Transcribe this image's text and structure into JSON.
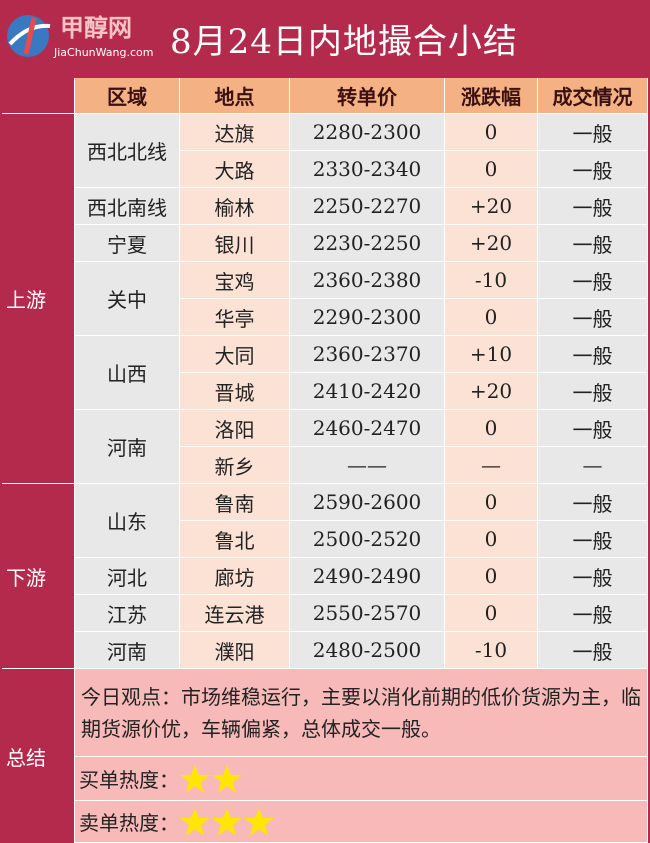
{
  "header": {
    "logo_cn": "甲醇网",
    "logo_en": "JiaChunWang.com",
    "title": "8月24日内地撮合小结"
  },
  "table": {
    "columns": [
      "区域",
      "地点",
      "转单价",
      "涨跌幅",
      "成交情况"
    ],
    "sections": [
      {
        "name": "上游",
        "groups": [
          {
            "region": "西北北线",
            "rows": [
              [
                "达旗",
                "2280-2300",
                "0",
                "一般"
              ],
              [
                "大路",
                "2330-2340",
                "0",
                "一般"
              ]
            ]
          },
          {
            "region": "西北南线",
            "rows": [
              [
                "榆林",
                "2250-2270",
                "+20",
                "一般"
              ]
            ]
          },
          {
            "region": "宁夏",
            "rows": [
              [
                "银川",
                "2230-2250",
                "+20",
                "一般"
              ]
            ]
          },
          {
            "region": "关中",
            "rows": [
              [
                "宝鸡",
                "2360-2380",
                "-10",
                "一般"
              ],
              [
                "华亭",
                "2290-2300",
                "0",
                "一般"
              ]
            ]
          },
          {
            "region": "山西",
            "rows": [
              [
                "大同",
                "2360-2370",
                "+10",
                "一般"
              ],
              [
                "晋城",
                "2410-2420",
                "+20",
                "一般"
              ]
            ]
          },
          {
            "region": "河南",
            "rows": [
              [
                "洛阳",
                "2460-2470",
                "0",
                "一般"
              ],
              [
                "新乡",
                "——",
                "—",
                "—"
              ]
            ]
          }
        ]
      },
      {
        "name": "下游",
        "groups": [
          {
            "region": "山东",
            "rows": [
              [
                "鲁南",
                "2590-2600",
                "0",
                "一般"
              ],
              [
                "鲁北",
                "2500-2520",
                "0",
                "一般"
              ]
            ]
          },
          {
            "region": "河北",
            "rows": [
              [
                "廊坊",
                "2490-2490",
                "0",
                "一般"
              ]
            ]
          },
          {
            "region": "江苏",
            "rows": [
              [
                "连云港",
                "2550-2570",
                "0",
                "一般"
              ]
            ]
          },
          {
            "region": "河南",
            "rows": [
              [
                "濮阳",
                "2480-2500",
                "-10",
                "一般"
              ]
            ]
          }
        ]
      }
    ]
  },
  "summary": {
    "label": "总结",
    "opinion": "今日观点：市场维稳运行，主要以消化前期的低价货源为主，临期货源价优，车辆偏紧，总体成交一般。",
    "buy_label": "买单热度：",
    "buy_stars": 2,
    "sell_label": "卖单热度：",
    "sell_stars": 3
  }
}
